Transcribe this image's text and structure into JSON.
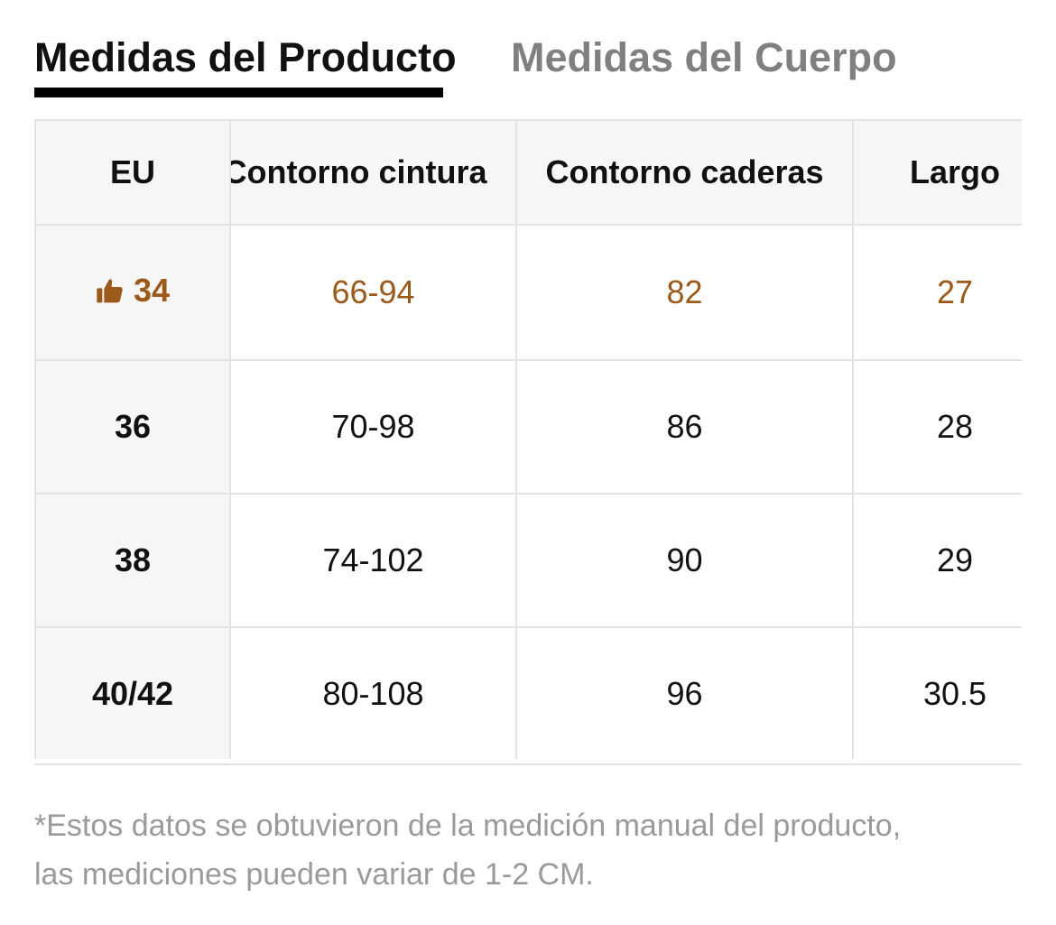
{
  "tabs": {
    "product": "Medidas del Producto",
    "body": "Medidas del Cuerpo"
  },
  "table": {
    "headers": {
      "size": "EU",
      "waist": "Contorno cintura",
      "hips": "Contorno caderas",
      "length": "Largo"
    },
    "rows": [
      {
        "size": "34",
        "waist": "66-94",
        "hips": "82",
        "length": "27"
      },
      {
        "size": "36",
        "waist": "70-98",
        "hips": "86",
        "length": "28"
      },
      {
        "size": "38",
        "waist": "74-102",
        "hips": "90",
        "length": "29"
      },
      {
        "size": "40/42",
        "waist": "80-108",
        "hips": "96",
        "length": "30.5"
      }
    ],
    "recommended_icon": "thumbs-up-icon"
  },
  "colors": {
    "recommended": "#9b5a1a",
    "active_tab": "#111111",
    "inactive_tab": "#808080"
  },
  "note": {
    "line1": "*Estos datos se obtuvieron de la medición manual del producto,",
    "line2": "las mediciones pueden variar de 1-2 CM."
  }
}
